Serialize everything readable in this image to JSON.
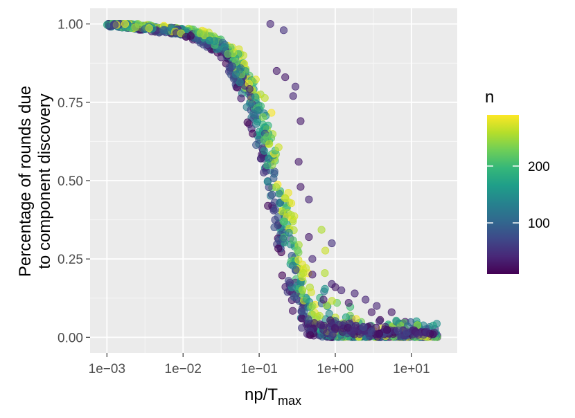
{
  "chart_data": {
    "type": "scatter",
    "title": "",
    "xlabel": "np/T",
    "xlabel_subscript": "max",
    "ylabel_line1": "Percentage of rounds due",
    "ylabel_line2": "to component discovery",
    "x_scale": "log10",
    "xlim": [
      0.0006,
      40
    ],
    "ylim": [
      -0.05,
      1.05
    ],
    "x_ticks": [
      0.001,
      0.01,
      0.1,
      1,
      10
    ],
    "x_tick_labels": [
      "1e−03",
      "1e−02",
      "1e−01",
      "1e+00",
      "1e+01"
    ],
    "y_ticks": [
      0,
      0.25,
      0.5,
      0.75,
      1
    ],
    "y_tick_labels": [
      "0.00",
      "0.25",
      "0.50",
      "0.75",
      "1.00"
    ],
    "grid": true,
    "color_scale": {
      "name": "n",
      "palette": "viridis",
      "range": [
        10,
        290
      ],
      "ticks": [
        100,
        200
      ],
      "tick_labels": [
        "100",
        "200"
      ],
      "stops": [
        "#440154",
        "#482878",
        "#3e4989",
        "#31688e",
        "#26828e",
        "#1f9e89",
        "#35b779",
        "#6ece58",
        "#b5de2b",
        "#fde725"
      ]
    },
    "point_alpha": 0.6,
    "trend": [
      [
        0.001,
        1.0
      ],
      [
        0.003,
        0.99
      ],
      [
        0.01,
        0.975
      ],
      [
        0.02,
        0.955
      ],
      [
        0.04,
        0.91
      ],
      [
        0.07,
        0.8
      ],
      [
        0.1,
        0.7
      ],
      [
        0.15,
        0.52
      ],
      [
        0.2,
        0.38
      ],
      [
        0.3,
        0.2
      ],
      [
        0.4,
        0.09
      ],
      [
        0.5,
        0.04
      ],
      [
        0.7,
        0.015
      ],
      [
        1.0,
        0.005
      ],
      [
        3.0,
        0.002
      ],
      [
        20.0,
        0.0
      ]
    ],
    "outliers": [
      {
        "x": 0.14,
        "y": 1.0,
        "n": 40
      },
      {
        "x": 0.21,
        "y": 0.98,
        "n": 50
      },
      {
        "x": 0.3,
        "y": 0.8,
        "n": 40
      },
      {
        "x": 0.35,
        "y": 0.69,
        "n": 30
      },
      {
        "x": 0.45,
        "y": 0.44,
        "n": 40
      },
      {
        "x": 0.35,
        "y": 0.48,
        "n": 30
      },
      {
        "x": 0.45,
        "y": 0.32,
        "n": 30
      },
      {
        "x": 0.9,
        "y": 0.3,
        "n": 50
      },
      {
        "x": 0.5,
        "y": 0.25,
        "n": 40
      },
      {
        "x": 0.5,
        "y": 0.2,
        "n": 30
      },
      {
        "x": 0.9,
        "y": 0.17,
        "n": 40
      },
      {
        "x": 1.0,
        "y": 0.16,
        "n": 30
      },
      {
        "x": 1.2,
        "y": 0.15,
        "n": 40
      },
      {
        "x": 1.8,
        "y": 0.14,
        "n": 40
      },
      {
        "x": 2.5,
        "y": 0.12,
        "n": 40
      },
      {
        "x": 3.5,
        "y": 0.1,
        "n": 40
      },
      {
        "x": 5.5,
        "y": 0.08,
        "n": 30
      },
      {
        "x": 0.7,
        "y": 0.12,
        "n": 30
      },
      {
        "x": 1.5,
        "y": 0.11,
        "n": 30
      },
      {
        "x": 3.0,
        "y": 0.08,
        "n": 30
      },
      {
        "x": 0.22,
        "y": 0.83,
        "n": 30
      },
      {
        "x": 0.28,
        "y": 0.77,
        "n": 40
      },
      {
        "x": 0.17,
        "y": 0.85,
        "n": 30
      },
      {
        "x": 0.33,
        "y": 0.56,
        "n": 30
      }
    ]
  }
}
